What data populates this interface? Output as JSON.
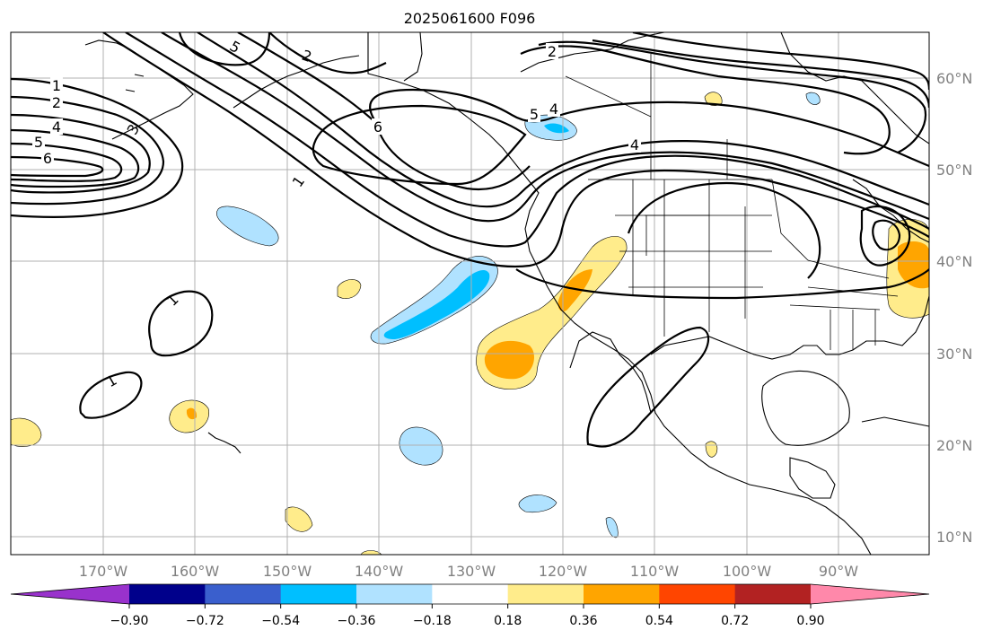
{
  "title": "2025061600 F096",
  "map": {
    "lon_labels": [
      "170°W",
      "160°W",
      "150°W",
      "140°W",
      "130°W",
      "120°W",
      "110°W",
      "100°W",
      "90°W"
    ],
    "lat_labels": [
      "60°N",
      "50°N",
      "40°N",
      "30°N",
      "20°N",
      "10°N"
    ],
    "contour_levels": [
      "1",
      "2",
      "3",
      "4",
      "5",
      "6"
    ]
  },
  "colorbar": {
    "colors": [
      "#9932cc",
      "#00008b",
      "#3a5fcd",
      "#00bfff",
      "#b0e2ff",
      "#ffffff",
      "#ffec8b",
      "#ffa500",
      "#ff4500",
      "#b22222",
      "#ff88aa"
    ],
    "tick_labels": [
      "−0.90",
      "−0.72",
      "−0.54",
      "−0.36",
      "−0.18",
      "0.18",
      "0.36",
      "0.54",
      "0.72",
      "0.90"
    ]
  }
}
